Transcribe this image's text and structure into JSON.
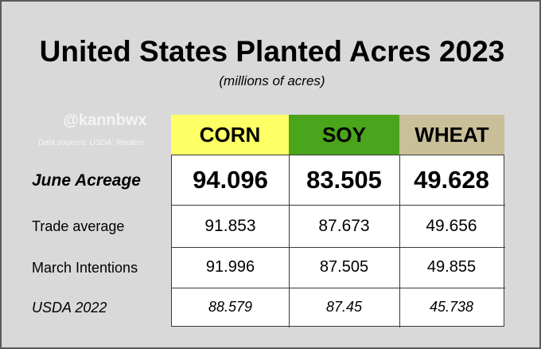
{
  "title": "United States Planted Acres 2023",
  "subtitle": "(millions  of acres)",
  "watermark": "@kannbwx",
  "source": "Data sources: USDA; Reuters",
  "colors": {
    "corn_header": "#ffff66",
    "soy_header": "#4aa51c",
    "wheat_header": "#c9c09a",
    "panel_background": "#d9d9d9"
  },
  "columns": [
    "CORN",
    "SOY",
    "WHEAT"
  ],
  "rows": [
    {
      "label": "June Acreage",
      "values": [
        "94.096",
        "83.505",
        "49.628"
      ]
    },
    {
      "label": "Trade average",
      "values": [
        "91.853",
        "87.673",
        "49.656"
      ]
    },
    {
      "label": "March Intentions",
      "values": [
        "91.996",
        "87.505",
        "49.855"
      ]
    },
    {
      "label": "USDA 2022",
      "values": [
        "88.579",
        "87.45",
        "45.738"
      ]
    }
  ]
}
